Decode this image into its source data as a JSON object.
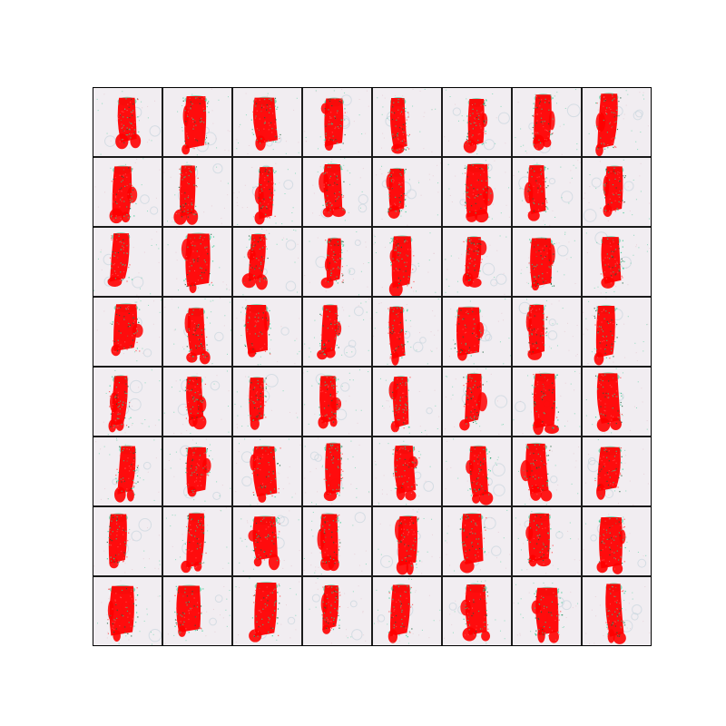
{
  "figure": {
    "background": "#ffffff",
    "grid_rows": 8,
    "grid_cols": 8,
    "tile_background": "#f1edf1",
    "figure_color": "#ff0000",
    "edge_color": "#2fc98e",
    "shadow_color": "#c9d6de"
  }
}
